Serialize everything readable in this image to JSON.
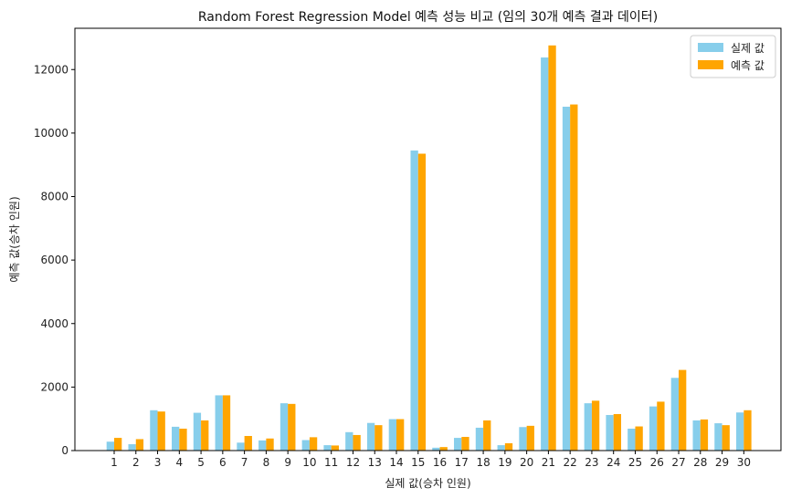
{
  "chart_data": {
    "type": "bar",
    "title": "Random Forest Regression Model 예측 성능 비교 (임의 30개 예측 결과 데이터)",
    "xlabel": "실제 값(승차 인원)",
    "ylabel": "예측 값(승차 인원)",
    "ylim": [
      0,
      13300
    ],
    "yticks": [
      0,
      2000,
      4000,
      6000,
      8000,
      10000,
      12000
    ],
    "categories": [
      "1",
      "2",
      "3",
      "4",
      "5",
      "6",
      "7",
      "8",
      "9",
      "10",
      "11",
      "12",
      "13",
      "14",
      "15",
      "16",
      "17",
      "18",
      "19",
      "20",
      "21",
      "22",
      "23",
      "24",
      "25",
      "26",
      "27",
      "28",
      "29",
      "30"
    ],
    "series": [
      {
        "name": "실제 값",
        "color": "#87CEEB",
        "values": [
          280,
          200,
          1270,
          750,
          1190,
          1740,
          250,
          320,
          1490,
          330,
          170,
          580,
          870,
          990,
          9450,
          90,
          400,
          720,
          170,
          740,
          12380,
          10830,
          1490,
          1120,
          690,
          1390,
          2290,
          950,
          860,
          1200
        ]
      },
      {
        "name": "예측 값",
        "color": "#FFA500",
        "values": [
          400,
          360,
          1230,
          690,
          950,
          1740,
          460,
          380,
          1470,
          420,
          160,
          490,
          800,
          990,
          9350,
          110,
          430,
          950,
          230,
          780,
          12760,
          10900,
          1570,
          1150,
          760,
          1540,
          2540,
          980,
          800,
          1270
        ]
      }
    ],
    "grid": false,
    "legend_position": "top-right"
  }
}
